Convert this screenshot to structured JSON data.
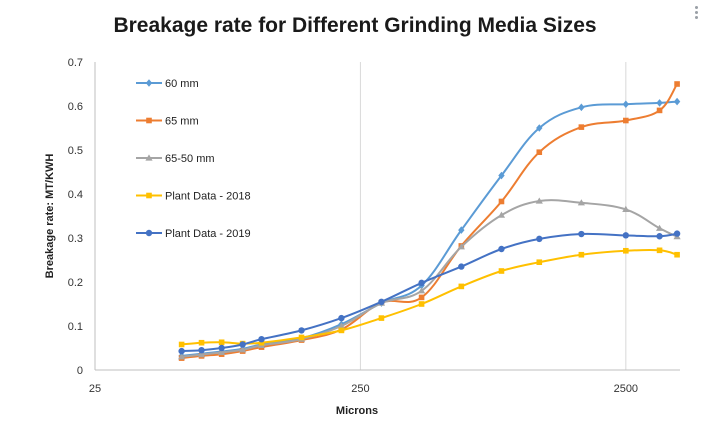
{
  "chart_data": {
    "type": "line",
    "title": "Breakage rate for Different Grinding Media Sizes",
    "xlabel": "Microns",
    "ylabel": "Breakage rate: MT/KWH",
    "x_scale": "log",
    "xlim": [
      25,
      4000
    ],
    "ylim": [
      0,
      0.7
    ],
    "x_ticks": [
      "25",
      "250",
      "2500"
    ],
    "y_ticks": [
      "0",
      "0.1",
      "0.2",
      "0.3",
      "0.4",
      "0.5",
      "0.6",
      "0.7"
    ],
    "grid": "vertical major lines",
    "legend_position": "top-left inside",
    "series": [
      {
        "name": "60   mm",
        "color": "#5B9BD5",
        "marker": "diamond",
        "x": [
          53,
          63,
          75,
          90,
          106,
          150,
          212,
          300,
          425,
          600,
          850,
          1180,
          1700,
          2500,
          3350,
          3900
        ],
        "y": [
          0.032,
          0.037,
          0.042,
          0.048,
          0.058,
          0.072,
          0.104,
          0.152,
          0.192,
          0.318,
          0.442,
          0.55,
          0.597,
          0.604,
          0.607,
          0.61
        ]
      },
      {
        "name": "65   mm",
        "color": "#ED7D31",
        "marker": "square",
        "x": [
          53,
          63,
          75,
          90,
          106,
          150,
          212,
          300,
          425,
          600,
          850,
          1180,
          1700,
          2500,
          3350,
          3900
        ],
        "y": [
          0.027,
          0.032,
          0.036,
          0.043,
          0.052,
          0.068,
          0.092,
          0.153,
          0.165,
          0.282,
          0.383,
          0.495,
          0.552,
          0.567,
          0.59,
          0.65
        ]
      },
      {
        "name": "65-50   mm",
        "color": "#A5A5A5",
        "marker": "triangle",
        "x": [
          53,
          63,
          75,
          90,
          106,
          150,
          212,
          300,
          425,
          600,
          850,
          1180,
          1700,
          2500,
          3350,
          3900
        ],
        "y": [
          0.03,
          0.035,
          0.04,
          0.046,
          0.056,
          0.07,
          0.1,
          0.152,
          0.18,
          0.28,
          0.352,
          0.384,
          0.38,
          0.365,
          0.322,
          0.303
        ]
      },
      {
        "name": "Plant Data - 2018",
        "color": "#FFC000",
        "marker": "square",
        "x": [
          53,
          63,
          75,
          90,
          106,
          150,
          212,
          300,
          425,
          600,
          850,
          1180,
          1700,
          2500,
          3350,
          3900
        ],
        "y": [
          0.058,
          0.062,
          0.063,
          0.06,
          0.062,
          0.074,
          0.09,
          0.118,
          0.15,
          0.19,
          0.225,
          0.245,
          0.262,
          0.271,
          0.272,
          0.262
        ]
      },
      {
        "name": "Plant Data - 2019",
        "color": "#4472C4",
        "marker": "circle",
        "x": [
          53,
          63,
          75,
          90,
          106,
          150,
          212,
          300,
          425,
          600,
          850,
          1180,
          1700,
          2500,
          3350,
          3900
        ],
        "y": [
          0.043,
          0.045,
          0.05,
          0.058,
          0.07,
          0.09,
          0.118,
          0.155,
          0.198,
          0.235,
          0.275,
          0.298,
          0.309,
          0.306,
          0.304,
          0.31
        ]
      }
    ]
  }
}
